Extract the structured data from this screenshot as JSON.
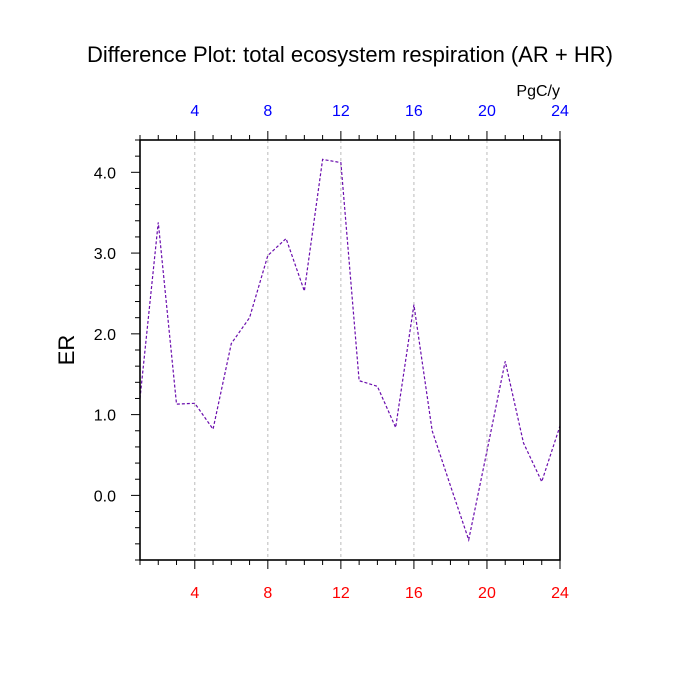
{
  "chart_data": {
    "type": "line",
    "title": "Difference Plot: total ecosystem respiration (AR + HR)",
    "ylabel": "ER",
    "units_label": "PgC/y",
    "x": [
      1,
      2,
      3,
      4,
      5,
      6,
      7,
      8,
      9,
      10,
      11,
      12,
      13,
      14,
      15,
      16,
      17,
      18,
      19,
      20,
      21,
      22,
      23,
      24
    ],
    "series": [
      {
        "values": [
          1.2,
          3.38,
          1.13,
          1.14,
          0.82,
          1.88,
          2.2,
          2.97,
          3.18,
          2.53,
          4.16,
          4.12,
          1.42,
          1.35,
          0.84,
          2.36,
          0.8,
          0.12,
          -0.55,
          0.55,
          1.66,
          0.65,
          0.17,
          0.86
        ]
      }
    ],
    "xlim": [
      1,
      24
    ],
    "ylim": [
      -0.8,
      4.4
    ],
    "x_major_ticks": [
      "4",
      "8",
      "12",
      "16",
      "20",
      "24"
    ],
    "x_tick_values": [
      4,
      8,
      12,
      16,
      20,
      24
    ],
    "y_major_ticks": [
      "0.0",
      "1.0",
      "2.0",
      "3.0",
      "4.0"
    ],
    "y_tick_values": [
      0,
      1,
      2,
      3,
      4
    ],
    "y_minor_step": 0.2,
    "x_minor_step": 1,
    "bottom_tick_color": "#ff0000",
    "top_tick_color": "#0000ff",
    "line_color": "#6a0dad",
    "line_style": "dashed",
    "vertical_gridlines": true
  }
}
